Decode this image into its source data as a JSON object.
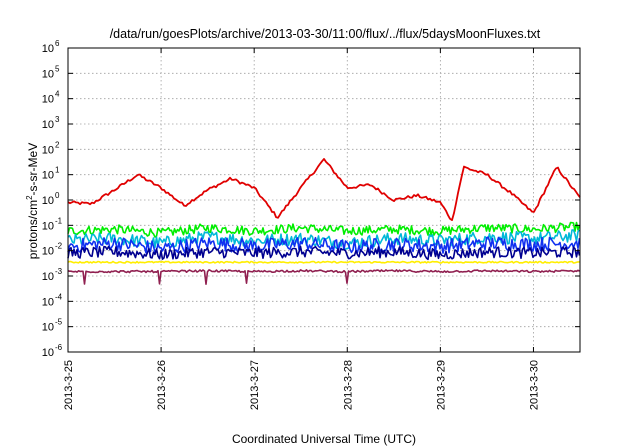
{
  "chart_data": {
    "type": "line",
    "title": "/data/run/goesPlots/archive/2013-03-30/11:00/flux/../flux/5daysMoonFluxes.txt",
    "xlabel": "Coordinated Universal Time (UTC)",
    "ylabel": "protons/cm²-s-sr-MeV",
    "ylabel_parts": {
      "pre": "protons/cm",
      "sup": "2",
      "post": "-s-sr-MeV"
    },
    "yscale": "log",
    "ylim": [
      1e-06,
      1000000.0
    ],
    "xlim": [
      "2013-03-25T00:00",
      "2013-03-30T12:00"
    ],
    "grid": true,
    "x_ticks": [
      {
        "value": "2013-03-25T00:00",
        "label": "2013-3-25"
      },
      {
        "value": "2013-03-26T00:00",
        "label": "2013-3-26"
      },
      {
        "value": "2013-03-27T00:00",
        "label": "2013-3-27"
      },
      {
        "value": "2013-03-28T00:00",
        "label": "2013-3-28"
      },
      {
        "value": "2013-03-29T00:00",
        "label": "2013-3-29"
      },
      {
        "value": "2013-03-30T00:00",
        "label": "2013-3-30"
      }
    ],
    "y_ticks": [
      {
        "value": 1e-06,
        "base": "10",
        "exp": "-6"
      },
      {
        "value": 1e-05,
        "base": "10",
        "exp": "-5"
      },
      {
        "value": 0.0001,
        "base": "10",
        "exp": "-4"
      },
      {
        "value": 0.001,
        "base": "10",
        "exp": "-3"
      },
      {
        "value": 0.01,
        "base": "10",
        "exp": "-2"
      },
      {
        "value": 0.1,
        "base": "10",
        "exp": "-1"
      },
      {
        "value": 1,
        "base": "10",
        "exp": "0"
      },
      {
        "value": 10,
        "base": "10",
        "exp": "1"
      },
      {
        "value": 100,
        "base": "10",
        "exp": "2"
      },
      {
        "value": 1000.0,
        "base": "10",
        "exp": "3"
      },
      {
        "value": 10000.0,
        "base": "10",
        "exp": "4"
      },
      {
        "value": 100000.0,
        "base": "10",
        "exp": "5"
      },
      {
        "value": 1000000.0,
        "base": "10",
        "exp": "6"
      }
    ],
    "series": [
      {
        "color": "#e00000",
        "x": [
          "2013-03-25T00:00",
          "2013-03-25T06:00",
          "2013-03-25T12:00",
          "2013-03-25T18:00",
          "2013-03-26T00:00",
          "2013-03-26T06:00",
          "2013-03-26T12:00",
          "2013-03-26T18:00",
          "2013-03-27T00:00",
          "2013-03-27T06:00",
          "2013-03-27T12:00",
          "2013-03-27T18:00",
          "2013-03-28T00:00",
          "2013-03-28T06:00",
          "2013-03-28T12:00",
          "2013-03-28T18:00",
          "2013-03-29T00:00",
          "2013-03-29T03:00",
          "2013-03-29T06:00",
          "2013-03-29T12:00",
          "2013-03-29T18:00",
          "2013-03-30T00:00",
          "2013-03-30T06:00",
          "2013-03-30T12:00"
        ],
        "y": [
          0.8,
          0.7,
          2.5,
          10,
          3.0,
          0.6,
          2.5,
          7.0,
          3.0,
          0.2,
          3.0,
          40,
          3.0,
          4.0,
          1.0,
          1.5,
          0.8,
          0.15,
          20,
          10,
          2.0,
          0.3,
          20,
          1.2
        ]
      },
      {
        "color": "#00ee00",
        "x": [
          "2013-03-25T00:00",
          "2013-03-25T12:00",
          "2013-03-26T00:00",
          "2013-03-26T12:00",
          "2013-03-27T00:00",
          "2013-03-27T12:00",
          "2013-03-28T00:00",
          "2013-03-28T12:00",
          "2013-03-29T00:00",
          "2013-03-29T12:00",
          "2013-03-30T00:00",
          "2013-03-30T12:00"
        ],
        "y": [
          0.06,
          0.07,
          0.05,
          0.08,
          0.06,
          0.08,
          0.06,
          0.07,
          0.06,
          0.08,
          0.07,
          0.09
        ]
      },
      {
        "color": "#00b8d8",
        "x": [
          "2013-03-25T00:00",
          "2013-03-25T12:00",
          "2013-03-26T00:00",
          "2013-03-26T12:00",
          "2013-03-27T00:00",
          "2013-03-27T12:00",
          "2013-03-28T00:00",
          "2013-03-28T12:00",
          "2013-03-29T00:00",
          "2013-03-29T12:00",
          "2013-03-30T00:00",
          "2013-03-30T12:00"
        ],
        "y": [
          0.025,
          0.03,
          0.02,
          0.035,
          0.025,
          0.03,
          0.02,
          0.03,
          0.025,
          0.035,
          0.03,
          0.04
        ]
      },
      {
        "color": "#1030f0",
        "x": [
          "2013-03-25T00:00",
          "2013-03-25T12:00",
          "2013-03-26T00:00",
          "2013-03-26T12:00",
          "2013-03-27T00:00",
          "2013-03-27T12:00",
          "2013-03-28T00:00",
          "2013-03-28T12:00",
          "2013-03-29T00:00",
          "2013-03-29T12:00",
          "2013-03-30T00:00",
          "2013-03-30T12:00"
        ],
        "y": [
          0.015,
          0.02,
          0.012,
          0.02,
          0.015,
          0.02,
          0.014,
          0.018,
          0.015,
          0.02,
          0.018,
          0.02
        ]
      },
      {
        "color": "#000090",
        "x": [
          "2013-03-25T00:00",
          "2013-03-25T12:00",
          "2013-03-26T00:00",
          "2013-03-26T12:00",
          "2013-03-27T00:00",
          "2013-03-27T12:00",
          "2013-03-28T00:00",
          "2013-03-28T12:00",
          "2013-03-29T00:00",
          "2013-03-29T12:00",
          "2013-03-30T00:00",
          "2013-03-30T12:00"
        ],
        "y": [
          0.008,
          0.009,
          0.007,
          0.009,
          0.008,
          0.009,
          0.008,
          0.009,
          0.007,
          0.009,
          0.008,
          0.009
        ]
      },
      {
        "color": "#ffee00",
        "x": [
          "2013-03-25T00:00",
          "2013-03-25T12:00",
          "2013-03-26T00:00",
          "2013-03-26T12:00",
          "2013-03-27T00:00",
          "2013-03-27T12:00",
          "2013-03-28T00:00",
          "2013-03-28T12:00",
          "2013-03-29T00:00",
          "2013-03-29T12:00",
          "2013-03-30T00:00",
          "2013-03-30T12:00"
        ],
        "y": [
          0.0035,
          0.0035,
          0.0035,
          0.0035,
          0.0035,
          0.0035,
          0.0035,
          0.0035,
          0.0035,
          0.0035,
          0.0035,
          0.0035
        ]
      },
      {
        "color": "#902050",
        "x": [
          "2013-03-25T00:00",
          "2013-03-25T12:00",
          "2013-03-26T00:00",
          "2013-03-26T12:00",
          "2013-03-27T00:00",
          "2013-03-27T12:00",
          "2013-03-28T00:00",
          "2013-03-28T12:00",
          "2013-03-29T00:00",
          "2013-03-29T12:00",
          "2013-03-30T00:00",
          "2013-03-30T12:00"
        ],
        "y": [
          0.0015,
          0.0015,
          0.0015,
          0.0016,
          0.0015,
          0.0016,
          0.0015,
          0.0016,
          0.0015,
          0.0016,
          0.0015,
          0.0016
        ]
      }
    ]
  }
}
